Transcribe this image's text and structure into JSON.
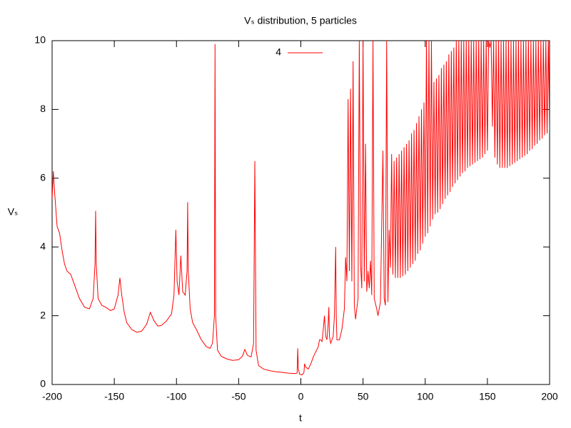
{
  "chart_data": {
    "type": "line",
    "title": "Vₛ distribution, 5 particles",
    "x_label": "t",
    "y_label": "Vₛ",
    "xlim": [
      -200,
      200
    ],
    "xticks": [
      -200,
      -150,
      -100,
      -50,
      0,
      50,
      100,
      150,
      200
    ],
    "ylim": [
      0,
      10
    ],
    "yticks": [
      0,
      2,
      4,
      6,
      8,
      10
    ],
    "grid": false,
    "legend": "top",
    "x": [
      -200,
      -199,
      -198,
      -196,
      -194,
      -192,
      -190,
      -188,
      -185,
      -182,
      -178,
      -174,
      -170,
      -167,
      -165.5,
      -165,
      -164.5,
      -163,
      -160,
      -157,
      -153,
      -150,
      -147,
      -145.5,
      -144,
      -142,
      -140,
      -136,
      -132,
      -128,
      -124,
      -121,
      -118,
      -115,
      -112,
      -108,
      -104,
      -102,
      -100.5,
      -99.5,
      -98,
      -96.5,
      -95,
      -93,
      -91.5,
      -91,
      -90.5,
      -89,
      -87,
      -84,
      -80,
      -76,
      -73,
      -71,
      -69.5,
      -69,
      -68.5,
      -67,
      -64,
      -60,
      -55,
      -50,
      -47,
      -45,
      -43,
      -40,
      -38,
      -37,
      -36,
      -34,
      -30,
      -25,
      -20,
      -15,
      -10,
      -5,
      -3,
      -2.5,
      -2,
      -1,
      1,
      2.5,
      3,
      4,
      6,
      8,
      10,
      12,
      14,
      15,
      16,
      17,
      18,
      19,
      20,
      21,
      22,
      22.5,
      23,
      24,
      26,
      27,
      28,
      28.5,
      29,
      31,
      33,
      35,
      36,
      37,
      38,
      39,
      40,
      41,
      42,
      43,
      44,
      46,
      47,
      48,
      49,
      50,
      51,
      52,
      53,
      54,
      55,
      56,
      57,
      58,
      59,
      61,
      62,
      64,
      66,
      67,
      68,
      69,
      70,
      71,
      72,
      73,
      74,
      75,
      76,
      77,
      78,
      79,
      80,
      81,
      82,
      83,
      84,
      85,
      86,
      87,
      88,
      89,
      90,
      91,
      92,
      93,
      94,
      95,
      96,
      97,
      98,
      99,
      100,
      101,
      102,
      103,
      104,
      105,
      106,
      107,
      108,
      109,
      110,
      111,
      112,
      113,
      114,
      115,
      116,
      117,
      118,
      119,
      120,
      121,
      122,
      123,
      124,
      125,
      126,
      127,
      128,
      129,
      130,
      131,
      132,
      133,
      134,
      135,
      136,
      137,
      138,
      139,
      140,
      141,
      142,
      143,
      144,
      145,
      146,
      147,
      148,
      149,
      150,
      151,
      152,
      153,
      154,
      155,
      156,
      157,
      158,
      159,
      160,
      161,
      162,
      163,
      164,
      165,
      166,
      167,
      168,
      169,
      170,
      171,
      172,
      173,
      174,
      175,
      176,
      177,
      178,
      179,
      180,
      181,
      182,
      183,
      184,
      185,
      186,
      187,
      188,
      189,
      190,
      191,
      192,
      193,
      194,
      195,
      196,
      197,
      198,
      199,
      200
    ],
    "series": [
      {
        "name": "4",
        "color": "#ff0000",
        "values": [
          5.4,
          6.2,
          5.6,
          4.6,
          4.4,
          3.9,
          3.5,
          3.3,
          3.2,
          2.9,
          2.5,
          2.25,
          2.2,
          2.5,
          3.5,
          5.05,
          3.5,
          2.5,
          2.3,
          2.25,
          2.15,
          2.2,
          2.6,
          3.1,
          2.6,
          2.1,
          1.8,
          1.6,
          1.52,
          1.55,
          1.75,
          2.1,
          1.85,
          1.7,
          1.72,
          1.85,
          2.05,
          2.6,
          4.5,
          3.0,
          2.6,
          3.75,
          2.7,
          2.6,
          3.3,
          5.3,
          3.3,
          2.2,
          1.8,
          1.6,
          1.3,
          1.1,
          1.05,
          1.2,
          2.0,
          9.9,
          2.0,
          1.0,
          0.82,
          0.75,
          0.7,
          0.72,
          0.82,
          1.02,
          0.85,
          0.8,
          1.2,
          6.5,
          1.0,
          0.55,
          0.45,
          0.4,
          0.37,
          0.35,
          0.33,
          0.32,
          0.33,
          1.05,
          0.45,
          0.3,
          0.28,
          0.35,
          0.6,
          0.5,
          0.45,
          0.6,
          0.8,
          0.95,
          1.1,
          1.3,
          1.3,
          1.25,
          1.6,
          2.0,
          1.4,
          1.3,
          1.8,
          2.25,
          1.4,
          1.2,
          1.4,
          2.0,
          4.0,
          2.0,
          1.3,
          1.3,
          1.6,
          2.2,
          3.7,
          3.0,
          8.3,
          3.3,
          8.6,
          3.0,
          9.4,
          2.3,
          1.9,
          2.5,
          10,
          3.5,
          2.8,
          10,
          3.0,
          7.0,
          2.7,
          3.3,
          2.8,
          3.6,
          2.6,
          10,
          2.5,
          2.2,
          2.0,
          2.4,
          6.8,
          2.5,
          2.3,
          10,
          2.4,
          4.5,
          3.4,
          6.7,
          3.2,
          6.5,
          3.1,
          6.6,
          3.1,
          6.7,
          3.1,
          6.8,
          3.15,
          6.9,
          3.2,
          7.0,
          3.3,
          7.1,
          3.4,
          7.3,
          3.5,
          7.4,
          3.6,
          7.6,
          3.8,
          7.8,
          3.9,
          8.0,
          4.1,
          8.2,
          4.3,
          10,
          4.4,
          10,
          4.6,
          10,
          4.8,
          8.8,
          4.95,
          8.9,
          5.0,
          9.0,
          5.1,
          9.2,
          5.25,
          9.3,
          5.4,
          9.4,
          5.5,
          9.6,
          5.6,
          9.7,
          5.75,
          9.8,
          5.85,
          10,
          5.95,
          10,
          6.05,
          10,
          6.15,
          10,
          6.2,
          10,
          6.3,
          10,
          6.35,
          10,
          6.4,
          10,
          6.45,
          10,
          6.5,
          10,
          6.55,
          10,
          6.6,
          10,
          6.7,
          10,
          6.8,
          10,
          9.8,
          10,
          7.5,
          10,
          6.6,
          10,
          6.4,
          10,
          6.3,
          10,
          6.3,
          10,
          6.3,
          10,
          6.3,
          10,
          6.35,
          10,
          6.4,
          10,
          6.45,
          10,
          6.5,
          10,
          6.55,
          10,
          6.6,
          10,
          6.65,
          10,
          6.7,
          10,
          6.8,
          10,
          6.85,
          10,
          6.95,
          10,
          7.0,
          10,
          7.1,
          10,
          7.15,
          10,
          7.25,
          10,
          7.3,
          10,
          7.4
        ]
      }
    ]
  }
}
